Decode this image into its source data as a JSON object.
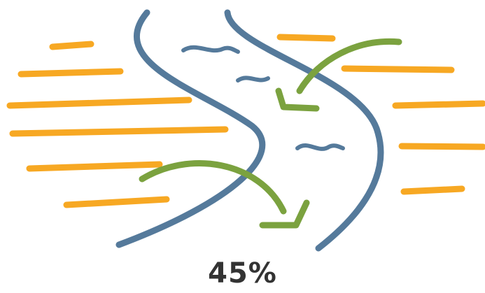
{
  "illustration": {
    "icon": "river-flow-illustration",
    "colors": {
      "sand_lines": "#F7A823",
      "river_banks": "#557A9B",
      "water_ripples": "#557A9B",
      "flow_arrows": "#7BA23F"
    }
  },
  "indicator": {
    "value_label": "45%",
    "value": 45
  }
}
